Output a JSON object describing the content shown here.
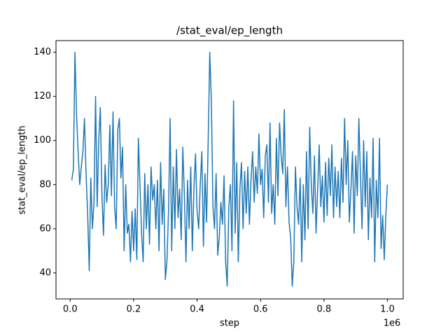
{
  "chart_data": {
    "type": "line",
    "title": "/stat_eval/ep_length",
    "x_label": "step",
    "y_label": "stat_eval/ep_length",
    "x_offset_label": "1e6",
    "color": "#1f77b4",
    "x": [
      5000,
      10000,
      15000,
      20000,
      25000,
      30000,
      35000,
      40000,
      45000,
      50000,
      55000,
      60000,
      65000,
      70000,
      75000,
      80000,
      85000,
      90000,
      95000,
      100000,
      105000,
      110000,
      115000,
      120000,
      125000,
      130000,
      135000,
      140000,
      145000,
      150000,
      155000,
      160000,
      165000,
      170000,
      175000,
      180000,
      185000,
      190000,
      195000,
      200000,
      205000,
      210000,
      215000,
      220000,
      225000,
      230000,
      235000,
      240000,
      245000,
      250000,
      255000,
      260000,
      265000,
      270000,
      275000,
      280000,
      285000,
      290000,
      295000,
      300000,
      305000,
      310000,
      315000,
      320000,
      325000,
      330000,
      335000,
      340000,
      345000,
      350000,
      355000,
      360000,
      365000,
      370000,
      375000,
      380000,
      385000,
      390000,
      395000,
      400000,
      405000,
      410000,
      415000,
      420000,
      425000,
      430000,
      435000,
      440000,
      445000,
      450000,
      455000,
      460000,
      465000,
      470000,
      475000,
      480000,
      485000,
      490000,
      495000,
      500000,
      505000,
      510000,
      515000,
      520000,
      525000,
      530000,
      535000,
      540000,
      545000,
      550000,
      555000,
      560000,
      565000,
      570000,
      575000,
      580000,
      585000,
      590000,
      595000,
      600000,
      605000,
      610000,
      615000,
      620000,
      625000,
      630000,
      635000,
      640000,
      645000,
      650000,
      655000,
      660000,
      665000,
      670000,
      675000,
      680000,
      685000,
      690000,
      695000,
      700000,
      705000,
      710000,
      715000,
      720000,
      725000,
      730000,
      735000,
      740000,
      745000,
      750000,
      755000,
      760000,
      765000,
      770000,
      775000,
      780000,
      785000,
      790000,
      795000,
      800000,
      805000,
      810000,
      815000,
      820000,
      825000,
      830000,
      835000,
      840000,
      845000,
      850000,
      855000,
      860000,
      865000,
      870000,
      875000,
      880000,
      885000,
      890000,
      895000,
      900000,
      905000,
      910000,
      915000,
      920000,
      925000,
      930000,
      935000,
      940000,
      945000,
      950000,
      955000,
      960000,
      965000,
      970000,
      975000,
      980000,
      985000,
      990000,
      995000,
      1000000
    ],
    "values": [
      82,
      87,
      140,
      112,
      95,
      80,
      88,
      95,
      110,
      85,
      67,
      41,
      83,
      60,
      72,
      120,
      70,
      100,
      115,
      75,
      57,
      89,
      72,
      80,
      107,
      75,
      113,
      70,
      60,
      105,
      110,
      83,
      97,
      50,
      80,
      58,
      62,
      45,
      68,
      50,
      69,
      46,
      101,
      80,
      58,
      45,
      85,
      60,
      80,
      53,
      88,
      73,
      80,
      60,
      82,
      50,
      90,
      62,
      78,
      37,
      45,
      68,
      110,
      50,
      88,
      60,
      96,
      65,
      78,
      55,
      97,
      75,
      45,
      82,
      60,
      88,
      50,
      78,
      94,
      68,
      60,
      80,
      95,
      52,
      85,
      63,
      100,
      140,
      118,
      70,
      60,
      85,
      48,
      56,
      72,
      62,
      84,
      45,
      34,
      70,
      80,
      50,
      118,
      58,
      90,
      45,
      78,
      90,
      60,
      86,
      67,
      88,
      62,
      82,
      95,
      72,
      88,
      76,
      103,
      80,
      87,
      65,
      93,
      98,
      72,
      108,
      67,
      80,
      62,
      101,
      75,
      108,
      93,
      85,
      114,
      70,
      88,
      63,
      56,
      34,
      45,
      88,
      70,
      62,
      83,
      45,
      80,
      55,
      95,
      60,
      106,
      80,
      67,
      93,
      58,
      78,
      98,
      70,
      84,
      63,
      90,
      66,
      92,
      75,
      98,
      65,
      88,
      70,
      86,
      65,
      92,
      72,
      110,
      80,
      100,
      63,
      78,
      95,
      58,
      93,
      75,
      110,
      84,
      60,
      100,
      70,
      95,
      55,
      83,
      65,
      101,
      45,
      82,
      65,
      101,
      51,
      66,
      46,
      66,
      80
    ],
    "xlim": [
      -44750,
      1049750
    ],
    "ylim": [
      28.2,
      145.3
    ],
    "xticks": [
      {
        "value": 0,
        "label": "0.0"
      },
      {
        "value": 200000,
        "label": "0.2"
      },
      {
        "value": 400000,
        "label": "0.4"
      },
      {
        "value": 600000,
        "label": "0.6"
      },
      {
        "value": 800000,
        "label": "0.8"
      },
      {
        "value": 1000000,
        "label": "1.0"
      }
    ],
    "yticks": [
      40,
      60,
      80,
      100,
      120,
      140
    ]
  }
}
